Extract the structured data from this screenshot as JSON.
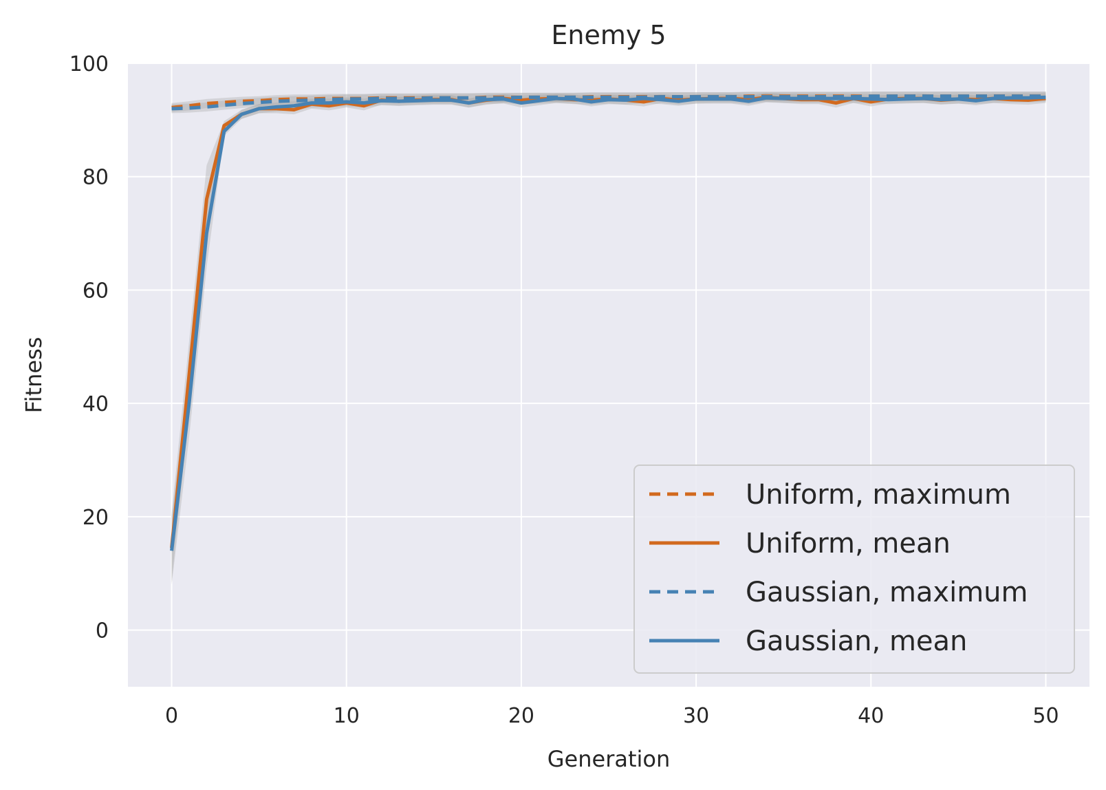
{
  "chart_data": {
    "type": "line",
    "title": "Enemy 5",
    "xlabel": "Generation",
    "ylabel": "Fitness",
    "xlim": [
      -2.5,
      52.5
    ],
    "ylim": [
      -10,
      100
    ],
    "xticks": [
      0,
      10,
      20,
      30,
      40,
      50
    ],
    "yticks": [
      0,
      20,
      40,
      60,
      80,
      100
    ],
    "grid": true,
    "legend_position": "lower-right",
    "colors": {
      "background": "#eaeaf2",
      "grid": "#ffffff",
      "uniform": "#d2691e",
      "gaussian": "#4682b4",
      "band": "#a9a9a9"
    },
    "x": [
      0,
      1,
      2,
      3,
      4,
      5,
      6,
      7,
      8,
      9,
      10,
      11,
      12,
      13,
      14,
      15,
      16,
      17,
      18,
      19,
      20,
      21,
      22,
      23,
      24,
      25,
      26,
      27,
      28,
      29,
      30,
      31,
      32,
      33,
      34,
      35,
      36,
      37,
      38,
      39,
      40,
      41,
      42,
      43,
      44,
      45,
      46,
      47,
      48,
      49,
      50
    ],
    "series": [
      {
        "name": "Uniform, maximum",
        "key": "uniform",
        "style": "dashed",
        "values": [
          92.2,
          92.5,
          92.9,
          93.1,
          93.3,
          93.4,
          93.6,
          93.7,
          93.7,
          93.8,
          93.8,
          93.8,
          93.9,
          93.9,
          93.9,
          93.9,
          93.9,
          93.9,
          94.0,
          94.0,
          94.0,
          94.0,
          94.0,
          94.0,
          94.1,
          94.1,
          94.1,
          94.1,
          94.1,
          94.1,
          94.1,
          94.1,
          94.1,
          94.2,
          94.2,
          94.2,
          94.2,
          94.2,
          94.2,
          94.2,
          94.2,
          94.2,
          94.2,
          94.2,
          94.2,
          94.2,
          94.2,
          94.2,
          94.2,
          94.2,
          94.2
        ]
      },
      {
        "name": "Uniform, mean",
        "key": "uniform",
        "style": "solid",
        "values": [
          14.5,
          45.0,
          76.0,
          89.0,
          91.0,
          92.0,
          92.0,
          91.8,
          92.8,
          92.5,
          93.0,
          92.5,
          93.5,
          93.3,
          93.5,
          93.6,
          93.6,
          93.0,
          93.5,
          93.8,
          93.5,
          93.7,
          93.8,
          93.6,
          93.5,
          93.7,
          93.5,
          93.2,
          93.8,
          93.5,
          93.7,
          93.8,
          93.8,
          93.6,
          94.0,
          93.8,
          93.6,
          93.6,
          93.0,
          93.8,
          93.2,
          93.7,
          93.8,
          93.8,
          93.5,
          93.7,
          93.6,
          93.8,
          93.6,
          93.5,
          93.8
        ]
      },
      {
        "name": "Gaussian, maximum",
        "key": "gaussian",
        "style": "dashed",
        "values": [
          92.0,
          92.1,
          92.3,
          92.6,
          92.9,
          93.1,
          93.3,
          93.4,
          93.5,
          93.6,
          93.7,
          93.7,
          93.8,
          93.8,
          93.8,
          93.9,
          93.9,
          93.9,
          93.9,
          93.9,
          94.0,
          94.0,
          94.0,
          94.0,
          94.0,
          94.0,
          94.0,
          94.0,
          94.1,
          94.1,
          94.1,
          94.1,
          94.1,
          94.1,
          94.1,
          94.1,
          94.1,
          94.1,
          94.1,
          94.1,
          94.2,
          94.2,
          94.2,
          94.2,
          94.2,
          94.2,
          94.2,
          94.2,
          94.2,
          94.2,
          94.2
        ]
      },
      {
        "name": "Gaussian, mean",
        "key": "gaussian",
        "style": "solid",
        "values": [
          14.0,
          40.0,
          70.0,
          88.0,
          91.0,
          92.0,
          92.3,
          92.5,
          93.0,
          93.0,
          93.2,
          93.0,
          93.4,
          93.3,
          93.4,
          93.5,
          93.5,
          93.0,
          93.6,
          93.7,
          93.0,
          93.4,
          93.8,
          93.7,
          93.2,
          93.6,
          93.5,
          93.8,
          93.6,
          93.3,
          93.7,
          93.7,
          93.7,
          93.3,
          93.9,
          93.8,
          93.8,
          93.8,
          93.8,
          93.8,
          93.7,
          93.6,
          93.7,
          93.8,
          93.6,
          93.7,
          93.4,
          93.8,
          93.9,
          93.9,
          94.0
        ]
      }
    ]
  }
}
